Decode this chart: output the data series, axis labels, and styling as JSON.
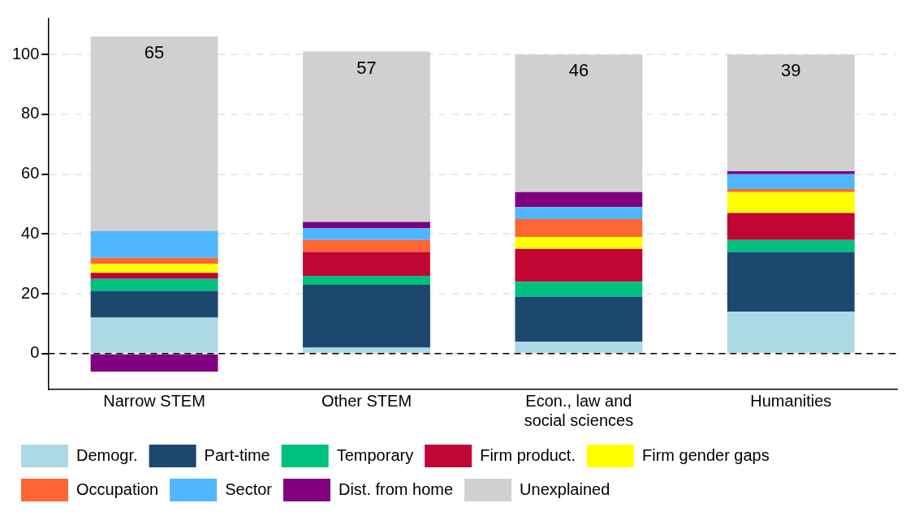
{
  "chart_data": {
    "type": "bar",
    "stacked": true,
    "categories": [
      "Narrow STEM",
      "Other STEM",
      "Econ., law and social sciences",
      "Humanities"
    ],
    "series": [
      {
        "name": "Demogr.",
        "color": "#add8e6",
        "values": [
          12,
          2,
          4,
          14
        ]
      },
      {
        "name": "Part-time",
        "color": "#1c4870",
        "values": [
          9,
          21,
          15,
          20
        ]
      },
      {
        "name": "Temporary",
        "color": "#00c07f",
        "values": [
          4,
          3,
          5,
          4
        ]
      },
      {
        "name": "Firm product.",
        "color": "#c10534",
        "values": [
          2,
          8,
          11,
          9
        ]
      },
      {
        "name": "Firm gender gaps",
        "color": "#ffff00",
        "values": [
          3,
          0,
          4,
          7
        ]
      },
      {
        "name": "Occupation",
        "color": "#ff6633",
        "values": [
          2,
          4,
          6,
          1
        ]
      },
      {
        "name": "Sector",
        "color": "#4fb6ff",
        "values": [
          9,
          4,
          4,
          5
        ]
      },
      {
        "name": "Dist. from home",
        "color": "#800080",
        "values": [
          -6,
          2,
          5,
          1
        ]
      },
      {
        "name": "Unexplained",
        "color": "#d0d0d0",
        "values": [
          65,
          57,
          46,
          39
        ],
        "value_labels": [
          "65",
          "57",
          "46",
          "39"
        ]
      }
    ],
    "ylim": [
      -12,
      112
    ],
    "yticks": [
      0,
      20,
      40,
      60,
      80,
      100
    ],
    "grid": "y",
    "legend": "bottom",
    "ref_lines": [
      {
        "axis": "y",
        "value": 0,
        "color": "#000000",
        "line_style": "dashed"
      }
    ]
  }
}
